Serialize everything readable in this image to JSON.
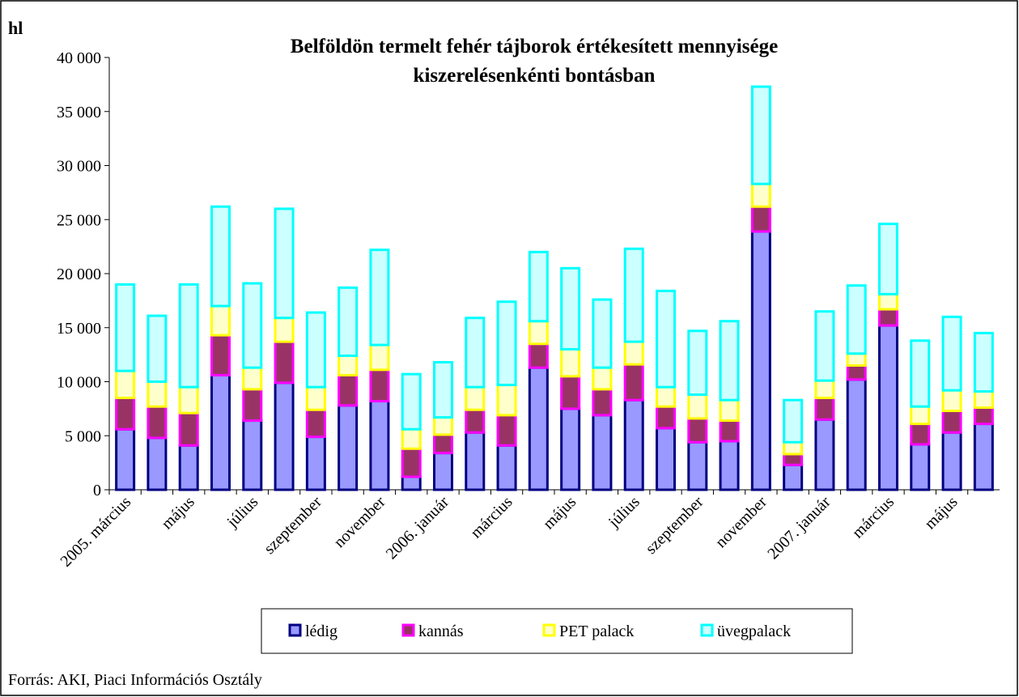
{
  "chart_data": {
    "type": "stacked_bar",
    "title": "Belföldön termelt fehér tájborok értékesített mennyisége kiszerelésenkénti bontásban",
    "y_label": "hl",
    "source": "Forrás: AKI, Piaci Információs Osztály",
    "categories": [
      "2005. március",
      null,
      "május",
      null,
      "július",
      null,
      "szeptember",
      null,
      "november",
      null,
      "2006. január",
      null,
      "március",
      null,
      "május",
      null,
      "július",
      null,
      "szeptember",
      null,
      "november",
      null,
      "2007. január",
      null,
      "március",
      null,
      "május",
      null
    ],
    "series": [
      {
        "name": "lédig",
        "color": "#9999ff",
        "stroke": "#000080",
        "values": [
          5600,
          4800,
          4100,
          10600,
          6400,
          9900,
          4900,
          7800,
          8200,
          1200,
          3400,
          5300,
          4100,
          11300,
          7500,
          6900,
          8300,
          5700,
          4400,
          4500,
          23900,
          2300,
          6500,
          10200,
          15200,
          4200,
          5300,
          6100
        ]
      },
      {
        "name": "kannás",
        "color": "#993366",
        "stroke": "#ff00ff",
        "values": [
          2900,
          2900,
          3000,
          3700,
          2900,
          3800,
          2500,
          2800,
          2900,
          2600,
          1700,
          2100,
          2800,
          2200,
          3000,
          2400,
          3300,
          2000,
          2200,
          1900,
          2300,
          1000,
          2000,
          1300,
          1500,
          1900,
          2000,
          1500
        ]
      },
      {
        "name": "PET palack",
        "color": "#ffffcc",
        "stroke": "#ffff00",
        "values": [
          2500,
          2300,
          2400,
          2700,
          2000,
          2200,
          2100,
          1800,
          2300,
          1800,
          1600,
          2100,
          2800,
          2100,
          2500,
          2000,
          2100,
          1800,
          2200,
          1900,
          2100,
          1100,
          1600,
          1100,
          1400,
          1600,
          1900,
          1500
        ]
      },
      {
        "name": "üvegpalack",
        "color": "#ccffff",
        "stroke": "#00ffff",
        "values": [
          8000,
          6100,
          9500,
          9200,
          7800,
          10100,
          6900,
          6300,
          8800,
          5100,
          5100,
          6400,
          7700,
          6400,
          7500,
          6300,
          8600,
          8900,
          5900,
          7300,
          9000,
          3900,
          6400,
          6300,
          6500,
          6100,
          6800,
          5400
        ]
      }
    ],
    "ylim": [
      0,
      40000
    ],
    "yticks": [
      0,
      {
        "value": 5000,
        "label": "5 000"
      },
      {
        "value": 10000,
        "label": "10 000"
      },
      {
        "value": 15000,
        "label": "15 000"
      },
      {
        "value": 20000,
        "label": "20 000"
      },
      {
        "value": 25000,
        "label": "25 000"
      },
      {
        "value": 30000,
        "label": "30 000"
      },
      {
        "value": 35000,
        "label": "35 000"
      },
      {
        "value": 40000,
        "label": "40 000"
      }
    ],
    "grid": false,
    "legend": "bottom"
  }
}
